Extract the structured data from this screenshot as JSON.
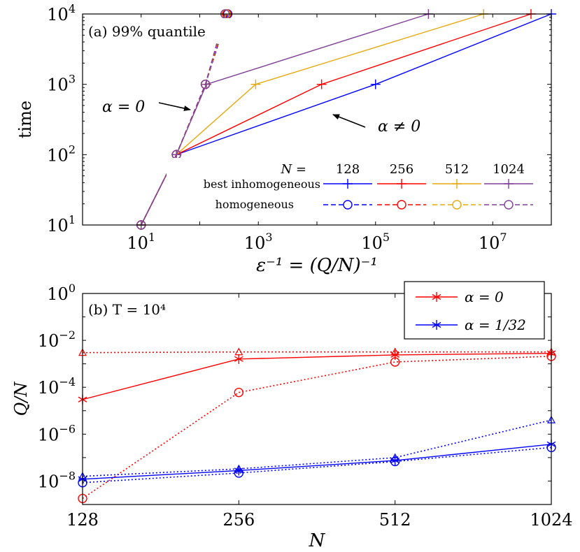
{
  "colors": {
    "n128": "#0000ff",
    "n256": "#ff0000",
    "n512": "#e6a80f",
    "n1024": "#7f3f98",
    "alpha0": "#ff0000",
    "alpha132": "#0000ff"
  },
  "chart_data": [
    {
      "type": "line",
      "panel": "(a)",
      "title": "(a) 99% quantile",
      "xlabel": "ε⁻¹ = (Q/N)⁻¹",
      "ylabel": "time",
      "xscale": "log",
      "yscale": "log",
      "xlim": [
        1,
        100000000
      ],
      "ylim": [
        10,
        10000
      ],
      "xticks": [
        {
          "value": 10,
          "label": "10",
          "exp": "1"
        },
        {
          "value": 1000,
          "label": "10",
          "exp": "3"
        },
        {
          "value": 100000,
          "label": "10",
          "exp": "5"
        },
        {
          "value": 10000000,
          "label": "10",
          "exp": "7"
        }
      ],
      "yticks": [
        {
          "value": 10,
          "label": "10",
          "exp": "1"
        },
        {
          "value": 100,
          "label": "10",
          "exp": "2"
        },
        {
          "value": 1000,
          "label": "10",
          "exp": "3"
        },
        {
          "value": 10000,
          "label": "10",
          "exp": "4"
        }
      ],
      "legend": {
        "header": "N =",
        "columns": [
          "128",
          "256",
          "512",
          "1024"
        ],
        "row_labels": [
          "best inhomogeneous",
          "homogeneous"
        ],
        "placement": "bottom-right"
      },
      "annotations": [
        {
          "text": "α = 0",
          "points_to": "homogeneous curves"
        },
        {
          "text": "α ≠ 0",
          "points_to": "inhomogeneous curves"
        }
      ],
      "series": [
        {
          "name": "best inhomogeneous",
          "N": "128",
          "color_key": "n128",
          "dash": false,
          "marker": "plus",
          "x": [
            10,
            40,
            100000,
            100000000
          ],
          "y": [
            10,
            100,
            1000,
            10000
          ]
        },
        {
          "name": "best inhomogeneous",
          "N": "256",
          "color_key": "n256",
          "dash": false,
          "marker": "plus",
          "x": [
            10,
            40,
            12000,
            45000000
          ],
          "y": [
            10,
            100,
            1000,
            10000
          ]
        },
        {
          "name": "best inhomogeneous",
          "N": "512",
          "color_key": "n512",
          "dash": false,
          "marker": "plus",
          "x": [
            10,
            40,
            900,
            7000000
          ],
          "y": [
            10,
            100,
            1000,
            10000
          ]
        },
        {
          "name": "best inhomogeneous",
          "N": "1024",
          "color_key": "n1024",
          "dash": false,
          "marker": "plus",
          "x": [
            10,
            40,
            130,
            800000
          ],
          "y": [
            10,
            100,
            1000,
            10000
          ]
        },
        {
          "name": "homogeneous",
          "N": "128",
          "color_key": "n128",
          "dash": true,
          "marker": "circle",
          "x": [
            10,
            40,
            125,
            300
          ],
          "y": [
            10,
            100,
            1000,
            10000
          ]
        },
        {
          "name": "homogeneous",
          "N": "256",
          "color_key": "n256",
          "dash": true,
          "marker": "circle",
          "x": [
            10,
            40,
            125,
            290
          ],
          "y": [
            10,
            100,
            1000,
            10000
          ]
        },
        {
          "name": "homogeneous",
          "N": "512",
          "color_key": "n512",
          "dash": true,
          "marker": "circle",
          "x": [
            10,
            40,
            125,
            280
          ],
          "y": [
            10,
            100,
            1000,
            10000
          ]
        },
        {
          "name": "homogeneous",
          "N": "1024",
          "color_key": "n1024",
          "dash": true,
          "marker": "circle",
          "x": [
            10,
            40,
            125,
            270
          ],
          "y": [
            10,
            100,
            1000,
            10000
          ]
        }
      ]
    },
    {
      "type": "line",
      "panel": "(b)",
      "title": "(b) T = 10⁴",
      "xlabel": "N",
      "ylabel": "Q/N",
      "xscale": "log2",
      "yscale": "log",
      "xlim": [
        128,
        1024
      ],
      "ylim": [
        1e-09,
        1
      ],
      "xticks": [
        {
          "value": 128,
          "label": "128"
        },
        {
          "value": 256,
          "label": "256"
        },
        {
          "value": 512,
          "label": "512"
        },
        {
          "value": 1024,
          "label": "1024"
        }
      ],
      "yticks": [
        {
          "value": 1,
          "label": "10",
          "exp": "0"
        },
        {
          "value": 0.01,
          "label": "10",
          "exp": "−2"
        },
        {
          "value": 0.0001,
          "label": "10",
          "exp": "−4"
        },
        {
          "value": 1e-06,
          "label": "10",
          "exp": "−6"
        },
        {
          "value": 1e-08,
          "label": "10",
          "exp": "−8"
        }
      ],
      "x": [
        128,
        256,
        512,
        1024
      ],
      "legend": {
        "entries": [
          "α = 0",
          "α = 1/32"
        ],
        "placement": "top-right, outside"
      },
      "series": [
        {
          "name": "α = 0",
          "color_key": "alpha0",
          "dash": false,
          "marker": "star",
          "values": [
            3e-05,
            0.0016,
            0.0024,
            0.0028
          ]
        },
        {
          "group": "α = 0",
          "color_key": "alpha0",
          "dash": true,
          "marker": "triangle",
          "values": [
            0.003,
            0.0032,
            0.0032,
            0.0032
          ]
        },
        {
          "group": "α = 0",
          "color_key": "alpha0",
          "dash": true,
          "marker": "circle",
          "values": [
            1.8e-09,
            6e-05,
            0.0012,
            0.0021
          ]
        },
        {
          "name": "α = 1/32",
          "color_key": "alpha132",
          "dash": false,
          "marker": "star",
          "values": [
            1.2e-08,
            2.8e-08,
            7.5e-08,
            3.7e-07
          ]
        },
        {
          "group": "α = 1/32",
          "color_key": "alpha132",
          "dash": true,
          "marker": "triangle",
          "values": [
            1.6e-08,
            3.3e-08,
            1e-07,
            4e-06
          ]
        },
        {
          "group": "α = 1/32",
          "color_key": "alpha132",
          "dash": true,
          "marker": "circle",
          "values": [
            8.5e-09,
            2.2e-08,
            6.8e-08,
            2.7e-07
          ]
        }
      ]
    }
  ]
}
